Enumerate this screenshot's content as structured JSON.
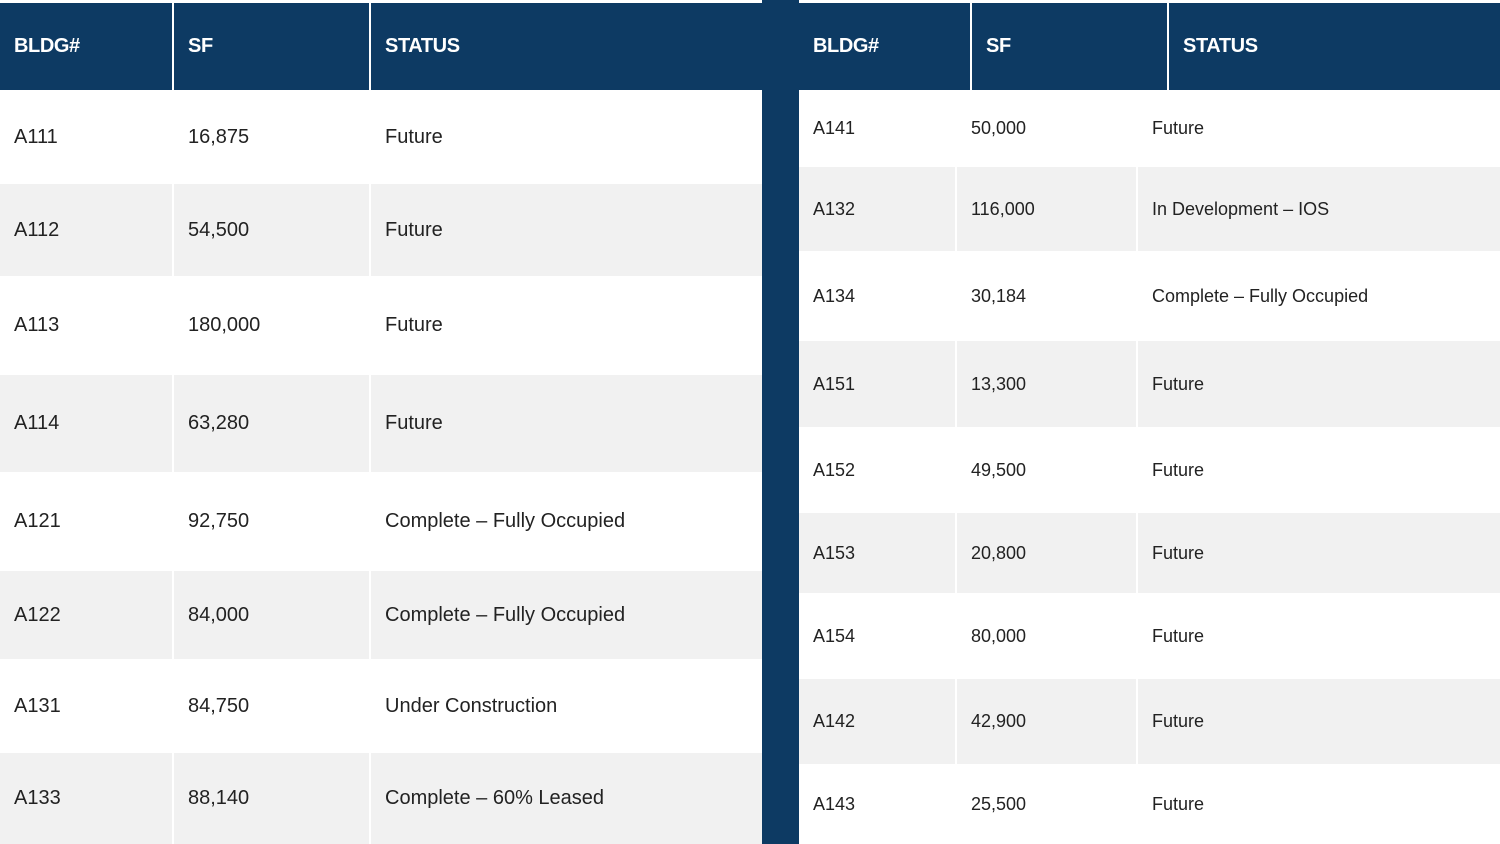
{
  "headers": {
    "bldg": "BLDG#",
    "sf": "SF",
    "status": "STATUS"
  },
  "left_table": {
    "rows": [
      {
        "bldg": "A111",
        "sf": "16,875",
        "status": "Future"
      },
      {
        "bldg": "A112",
        "sf": "54,500",
        "status": "Future"
      },
      {
        "bldg": "A113",
        "sf": "180,000",
        "status": "Future"
      },
      {
        "bldg": "A114",
        "sf": "63,280",
        "status": "Future"
      },
      {
        "bldg": "A121",
        "sf": "92,750",
        "status": "Complete – Fully Occupied"
      },
      {
        "bldg": "A122",
        "sf": "84,000",
        "status": "Complete – Fully Occupied"
      },
      {
        "bldg": "A131",
        "sf": "84,750",
        "status": "Under Construction"
      },
      {
        "bldg": "A133",
        "sf": "88,140",
        "status": "Complete – 60% Leased"
      }
    ]
  },
  "right_table": {
    "rows": [
      {
        "bldg": "A141",
        "sf": "50,000",
        "status": "Future"
      },
      {
        "bldg": "A132",
        "sf": "116,000",
        "status": "In Development – IOS"
      },
      {
        "bldg": "A134",
        "sf": "30,184",
        "status": "Complete – Fully Occupied"
      },
      {
        "bldg": "A151",
        "sf": "13,300",
        "status": "Future"
      },
      {
        "bldg": "A152",
        "sf": "49,500",
        "status": "Future"
      },
      {
        "bldg": "A153",
        "sf": "20,800",
        "status": "Future"
      },
      {
        "bldg": "A154",
        "sf": "80,000",
        "status": "Future"
      },
      {
        "bldg": "A142",
        "sf": "42,900",
        "status": "Future"
      },
      {
        "bldg": "A143",
        "sf": "25,500",
        "status": "Future"
      }
    ]
  },
  "colors": {
    "header_bg": "#0d3a63",
    "header_text": "#ffffff",
    "row_odd": "#ffffff",
    "row_even": "#f1f1f1",
    "body_text": "#222222"
  }
}
